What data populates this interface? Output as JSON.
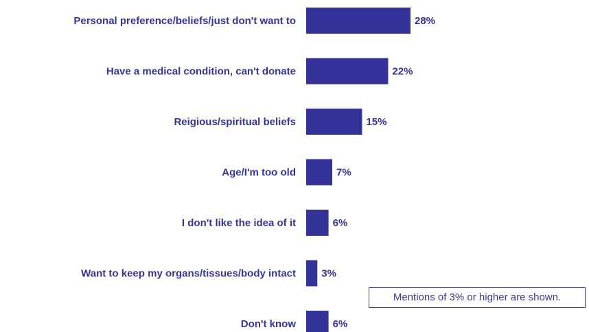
{
  "colors": {
    "bar": "#333399",
    "text": "#333399",
    "note_border": "#3a3a96"
  },
  "note": "Mentions of 3% or higher are shown.",
  "chart_data": {
    "type": "bar",
    "orientation": "horizontal",
    "categories": [
      "Personal preference/beliefs/just don't want to",
      "Have a medical condition, can't donate",
      "Reigious/spiritual beliefs",
      "Age/I'm too old",
      "I don't like the idea of it",
      "Want to keep my organs/tissues/body intact",
      "Don't know"
    ],
    "values": [
      28,
      22,
      15,
      7,
      6,
      3,
      6
    ],
    "value_labels": [
      "28%",
      "22%",
      "15%",
      "7%",
      "6%",
      "3%",
      "6%"
    ],
    "unit": "%",
    "xlim": [
      0,
      30
    ],
    "grid": false,
    "legend": "none"
  }
}
